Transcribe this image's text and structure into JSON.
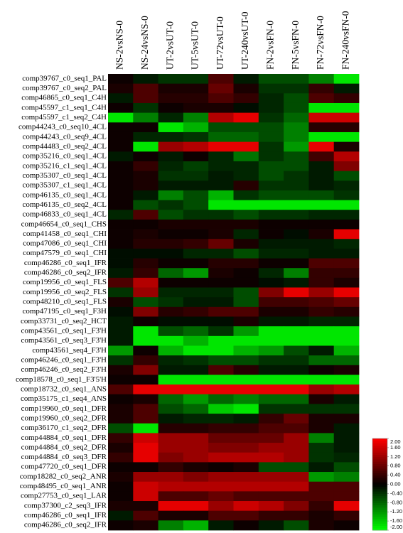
{
  "chart_data": {
    "type": "heatmap",
    "categories": [
      "NS-2vsNS-0",
      "NS-24vsNS-0",
      "UT-2vsUT-0",
      "UT-5vsUT-0",
      "UT-72vsUT-0",
      "UT-240vsUT-0",
      "FN-2vsFN-0",
      "FN-5vsFN-0",
      "FN-72vsFN-0",
      "FN-240vsFN-0"
    ],
    "rows": [
      "comp39767_c0_seq1_PAL",
      "comp39767_c0_seq2_PAL",
      "comp46865_c0_seq1_C4H",
      "comp45597_c1_seq1_C4H",
      "comp45597_c1_seq2_C4H",
      "comp44243_c0_seq10_4CL",
      "comp44243_c0_seq9_4CL",
      "comp44483_c0_seq2_4CL",
      "comp35216_c0_seq1_4CL",
      "comp35216_c1_seq1_4CL",
      "comp35307_c0_seq1_4CL",
      "comp35307_c1_seq1_4CL",
      "comp46135_c0_seq1_4CL",
      "comp46135_c0_seq2_4CL",
      "comp46833_c0_seq1_4CL",
      "comp46654_c0_seq1_CHS",
      "comp41458_c0_seq1_CHI",
      "comp47086_c0_seq1_CHI",
      "comp47579_c0_seq1_CHI",
      "comp46286_c0_seq1_IFR",
      "comp46286_c0_seq2_IFR",
      "comp19956_c0_seq1_FLS",
      "comp19956_c0_seq2_FLS",
      "comp48210_c0_seq1_FLS",
      "comp47195_c0_seq1_F3H",
      "comp33731_c0_seq2_HCT",
      "comp43561_c0_seq1_F3'H",
      "comp43561_c0_seq3_F3'H",
      "comp43561_seq4_F3'H",
      "comp46246_c0_seq1_F3'H",
      "comp46246_c0_seq2_F3'H",
      "comp18578_c0_seq1_F3'5'H",
      "comp18732_c0_seq1_ANS",
      "comp35175_c1_seq4_ANS",
      "comp19960_c0_seq1_DFR",
      "comp19960_c0_seq2_DFR",
      "comp36170_c1_seq2_DFR",
      "comp44884_c0_seq1_DFR",
      "comp44884_c0_seq2_DFR",
      "comp44884_c0_seq3_DFR",
      "comp47720_c0_seq1_DFR",
      "comp18282_c0_seq2_ANR",
      "comp48495_c0_seq1_ANR",
      "comp27753_c0_seq1_LAR",
      "comp37300_c2_seq3_IFR",
      "comp46286_c0_seq1_IFR",
      "comp46286_c0_seq2_IFR"
    ],
    "values": [
      [
        0.1,
        -0.2,
        -0.4,
        -0.4,
        0.6,
        -0.2,
        -0.6,
        -0.6,
        -1.0,
        -1.8
      ],
      [
        0.2,
        0.6,
        0.2,
        0.2,
        0.8,
        0.2,
        -0.4,
        -0.4,
        0.4,
        -0.2
      ],
      [
        -0.2,
        0.6,
        0.3,
        0.3,
        0.6,
        0.4,
        -0.3,
        -0.6,
        0.6,
        0.4
      ],
      [
        0.1,
        -0.4,
        0.1,
        0.2,
        0.2,
        -0.1,
        -0.3,
        -0.6,
        -1.8,
        -1.8
      ],
      [
        -1.8,
        -1.0,
        -0.3,
        -1.0,
        1.4,
        1.8,
        -0.4,
        -0.8,
        1.6,
        1.6
      ],
      [
        0.1,
        0.1,
        -1.8,
        -1.4,
        -0.6,
        -0.6,
        -0.6,
        -1.0,
        0.3,
        0.3
      ],
      [
        0.1,
        -0.3,
        -0.3,
        -0.4,
        -0.8,
        -0.8,
        -0.6,
        -1.0,
        -1.8,
        -1.8
      ],
      [
        0.1,
        -1.8,
        1.2,
        1.4,
        1.8,
        1.8,
        -0.4,
        -1.2,
        1.8,
        0.2
      ],
      [
        -0.2,
        0.1,
        -0.2,
        0.1,
        -0.3,
        -0.9,
        -0.4,
        -0.6,
        0.5,
        1.4
      ],
      [
        0.1,
        0.4,
        -0.3,
        -0.5,
        -0.3,
        -0.3,
        -0.6,
        -0.6,
        -0.2,
        1.0
      ],
      [
        0.1,
        0.2,
        -0.4,
        -0.4,
        -0.2,
        -0.3,
        -0.6,
        -0.4,
        -0.2,
        -0.6
      ],
      [
        0.1,
        0.2,
        -0.2,
        -0.2,
        -0.2,
        0.3,
        -0.4,
        -0.4,
        -0.2,
        -0.3
      ],
      [
        0.1,
        -0.2,
        -1.0,
        -0.6,
        -1.4,
        -0.4,
        -0.6,
        -0.6,
        -0.6,
        -0.4
      ],
      [
        0.1,
        -0.6,
        -0.4,
        -0.6,
        -1.8,
        -1.8,
        -1.8,
        -1.8,
        -1.8,
        -1.8
      ],
      [
        -0.3,
        0.6,
        -0.6,
        -0.4,
        -0.4,
        -0.6,
        -0.4,
        -0.4,
        -0.3,
        -0.3
      ],
      [
        0.1,
        0.1,
        0.2,
        0.2,
        0.2,
        0.2,
        0.1,
        0.1,
        0.1,
        0.1
      ],
      [
        0.1,
        0.2,
        0.1,
        0.1,
        0.2,
        -0.3,
        0.1,
        -0.1,
        0.2,
        1.8
      ],
      [
        0.1,
        0.3,
        0.3,
        0.4,
        0.8,
        0.2,
        -0.2,
        -0.2,
        -0.2,
        -0.3
      ],
      [
        -0.1,
        -0.1,
        -0.1,
        -0.3,
        -0.3,
        -0.6,
        -0.3,
        -0.3,
        -0.2,
        -0.2
      ],
      [
        -0.1,
        0.3,
        0.1,
        0.1,
        0.3,
        0.3,
        0.1,
        0.1,
        0.6,
        0.6
      ],
      [
        -0.2,
        0.4,
        -0.8,
        -1.2,
        0.2,
        0.1,
        -0.3,
        -1.0,
        0.4,
        0.4
      ],
      [
        0.6,
        1.4,
        0.1,
        0.1,
        0.1,
        0.1,
        -0.1,
        -0.2,
        0.4,
        0.2
      ],
      [
        -0.4,
        1.2,
        -0.3,
        -0.3,
        -0.3,
        -0.6,
        1.0,
        1.8,
        1.2,
        1.8
      ],
      [
        0.2,
        -0.6,
        -0.4,
        -0.2,
        -0.2,
        -0.6,
        0.5,
        0.5,
        0.6,
        0.8
      ],
      [
        -0.1,
        1.0,
        0.3,
        0.4,
        0.6,
        0.6,
        0.2,
        0.2,
        0.4,
        0.3
      ],
      [
        -0.2,
        0.1,
        -0.1,
        -0.1,
        -0.1,
        0.2,
        -0.2,
        -0.2,
        -0.3,
        -0.3
      ],
      [
        -0.2,
        -1.8,
        -0.6,
        -0.8,
        -0.4,
        -1.2,
        -1.8,
        -1.8,
        -1.8,
        -1.8
      ],
      [
        -0.2,
        -1.8,
        -1.8,
        -1.4,
        -1.8,
        -1.8,
        -1.8,
        -1.8,
        -1.8,
        -1.8
      ],
      [
        -1.2,
        0.1,
        -1.4,
        -1.8,
        -1.8,
        -1.4,
        -1.2,
        -0.6,
        -0.2,
        -1.4
      ],
      [
        -0.4,
        0.4,
        -0.3,
        -0.4,
        -0.6,
        -0.6,
        -0.4,
        -0.4,
        -0.8,
        -0.8
      ],
      [
        0.2,
        1.0,
        -0.2,
        -0.2,
        0.6,
        0.3,
        -0.2,
        -0.2,
        0.1,
        0.2
      ],
      [
        0.1,
        0.1,
        -1.8,
        -1.8,
        -1.8,
        -1.8,
        -1.8,
        -1.8,
        -1.8,
        -1.8
      ],
      [
        0.6,
        1.8,
        1.8,
        1.8,
        1.8,
        1.8,
        1.8,
        1.8,
        1.2,
        1.4
      ],
      [
        0.1,
        0.2,
        -0.8,
        -1.2,
        -0.8,
        -1.0,
        -0.8,
        -0.8,
        0.2,
        -0.2
      ],
      [
        0.2,
        0.6,
        -0.6,
        -0.8,
        -1.6,
        -1.8,
        -0.4,
        -0.4,
        -0.4,
        -0.4
      ],
      [
        0.2,
        0.6,
        -0.2,
        -0.3,
        -0.3,
        -0.2,
        0.4,
        0.8,
        0.2,
        0.2
      ],
      [
        -0.6,
        -1.8,
        0.3,
        0.3,
        0.4,
        0.4,
        0.6,
        0.6,
        0.2,
        -0.2
      ],
      [
        0.4,
        1.6,
        1.2,
        1.2,
        0.8,
        0.8,
        0.8,
        1.2,
        -1.0,
        -0.2
      ],
      [
        0.2,
        1.8,
        1.2,
        1.2,
        1.0,
        1.0,
        1.2,
        1.2,
        -0.4,
        -0.2
      ],
      [
        0.4,
        1.8,
        1.0,
        1.2,
        1.4,
        1.4,
        1.4,
        1.2,
        -0.4,
        -0.3
      ],
      [
        0.1,
        0.1,
        0.4,
        0.2,
        0.1,
        0.2,
        -0.6,
        -0.6,
        -0.2,
        -0.6
      ],
      [
        0.2,
        1.2,
        1.2,
        1.0,
        1.2,
        1.2,
        1.2,
        1.2,
        -1.2,
        -1.0
      ],
      [
        0.1,
        1.6,
        1.4,
        1.4,
        1.4,
        1.4,
        1.4,
        1.4,
        0.6,
        0.6
      ],
      [
        0.1,
        1.6,
        0.6,
        0.6,
        0.8,
        0.6,
        0.6,
        0.6,
        0.6,
        0.6
      ],
      [
        0.2,
        0.2,
        1.8,
        1.8,
        1.2,
        1.6,
        1.4,
        1.0,
        0.4,
        1.8
      ],
      [
        -0.2,
        0.6,
        0.2,
        0.2,
        0.6,
        0.6,
        0.4,
        0.4,
        0.2,
        0.4
      ],
      [
        0.1,
        0.2,
        -1.0,
        -1.4,
        -0.2,
        0.1,
        -0.2,
        -0.6,
        0.2,
        0.1
      ]
    ],
    "clim": [
      -2,
      2
    ],
    "colors": {
      "low": "#00ff00",
      "mid": "#000000",
      "high": "#ff0000"
    },
    "colorbar_ticks": [
      {
        "value": 2,
        "label": "2.00"
      },
      {
        "value": 1.6,
        "label": "1.60"
      },
      {
        "value": 1.2,
        "label": "1.20"
      },
      {
        "value": 0.8,
        "label": "0.80"
      },
      {
        "value": 0.4,
        "label": "0.40"
      },
      {
        "value": 0,
        "label": "0.00"
      },
      {
        "value": -0.4,
        "label": "-0.40"
      },
      {
        "value": -0.8,
        "label": "-0.80"
      },
      {
        "value": -1.2,
        "label": "-1.20"
      },
      {
        "value": -1.6,
        "label": "-1.60"
      },
      {
        "value": -2,
        "label": "-2.00"
      }
    ]
  }
}
